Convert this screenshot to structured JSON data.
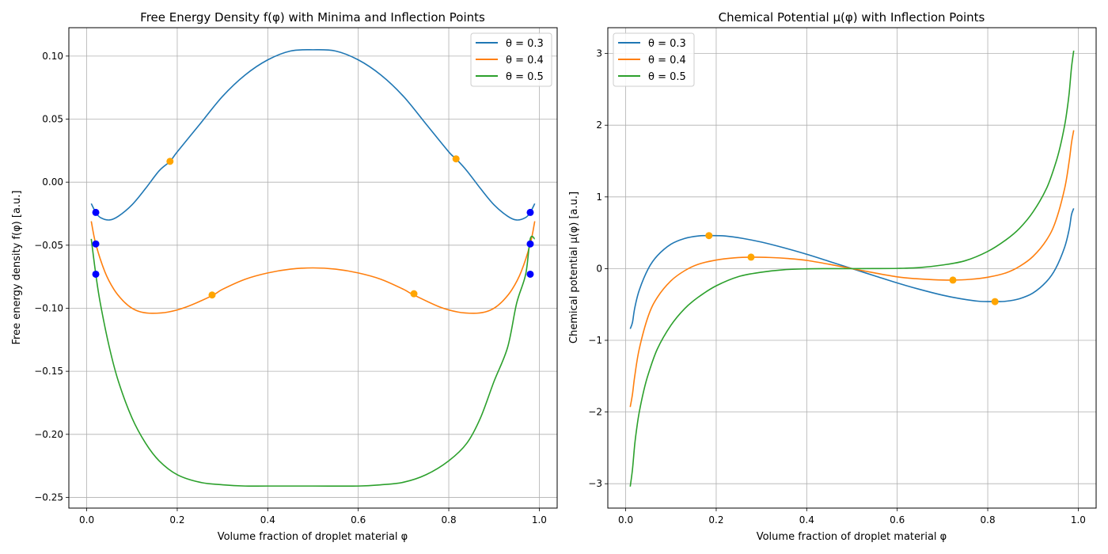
{
  "chart_data": [
    {
      "type": "line",
      "title": "Free Energy Density f(φ) with Minima and Inflection Points",
      "xlabel": "Volume fraction of droplet material φ",
      "ylabel": "Free energy density f(φ) [a.u.]",
      "xlim": [
        -0.0395,
        1.0395
      ],
      "ylim": [
        -0.2585,
        0.1225
      ],
      "xticks": [
        0.0,
        0.2,
        0.4,
        0.6,
        0.8,
        1.0
      ],
      "xtick_labels": [
        "0.0",
        "0.2",
        "0.4",
        "0.6",
        "0.8",
        "1.0"
      ],
      "yticks": [
        -0.25,
        -0.2,
        -0.15,
        -0.1,
        -0.05,
        0.0,
        0.05,
        0.1
      ],
      "ytick_labels": [
        "−0.25",
        "−0.20",
        "−0.15",
        "−0.10",
        "−0.05",
        "0.00",
        "0.05",
        "0.10"
      ],
      "grid": true,
      "legend_position": "upper right",
      "series": [
        {
          "name": "θ = 0.3",
          "color": "#1f77b4",
          "x": [
            0.01,
            0.02,
            0.03,
            0.05,
            0.07,
            0.1,
            0.13,
            0.16,
            0.184,
            0.2,
            0.25,
            0.3,
            0.35,
            0.4,
            0.45,
            0.5,
            0.55,
            0.6,
            0.65,
            0.7,
            0.75,
            0.8,
            0.816,
            0.84,
            0.87,
            0.9,
            0.93,
            0.95,
            0.97,
            0.98,
            0.99
          ],
          "y": [
            -0.017,
            -0.024,
            -0.028,
            -0.03,
            -0.027,
            -0.018,
            -0.005,
            0.009,
            0.0165,
            0.024,
            0.046,
            0.068,
            0.085,
            0.097,
            0.104,
            0.105,
            0.104,
            0.097,
            0.085,
            0.068,
            0.046,
            0.024,
            0.0185,
            0.009,
            -0.005,
            -0.018,
            -0.027,
            -0.03,
            -0.028,
            -0.024,
            -0.017
          ]
        },
        {
          "name": "θ = 0.4",
          "color": "#ff7f0e",
          "x": [
            0.01,
            0.02,
            0.04,
            0.06,
            0.08,
            0.1,
            0.12,
            0.145,
            0.18,
            0.22,
            0.277,
            0.3,
            0.35,
            0.4,
            0.45,
            0.5,
            0.55,
            0.6,
            0.65,
            0.7,
            0.72,
            0.78,
            0.82,
            0.855,
            0.88,
            0.9,
            0.92,
            0.94,
            0.96,
            0.98,
            0.99
          ],
          "y": [
            -0.031,
            -0.049,
            -0.071,
            -0.085,
            -0.094,
            -0.1,
            -0.103,
            -0.104,
            -0.103,
            -0.099,
            -0.09,
            -0.085,
            -0.077,
            -0.072,
            -0.069,
            -0.068,
            -0.069,
            -0.072,
            -0.077,
            -0.085,
            -0.089,
            -0.099,
            -0.103,
            -0.104,
            -0.103,
            -0.1,
            -0.094,
            -0.085,
            -0.071,
            -0.049,
            -0.031
          ]
        },
        {
          "name": "θ = 0.5",
          "color": "#2ca02c",
          "x": [
            0.01,
            0.02,
            0.03,
            0.05,
            0.07,
            0.1,
            0.13,
            0.16,
            0.2,
            0.25,
            0.3,
            0.35,
            0.4,
            0.5,
            0.6,
            0.65,
            0.7,
            0.75,
            0.8,
            0.84,
            0.87,
            0.9,
            0.93,
            0.95,
            0.97,
            0.98,
            0.99
          ],
          "y": [
            -0.045,
            -0.073,
            -0.096,
            -0.131,
            -0.158,
            -0.187,
            -0.207,
            -0.221,
            -0.232,
            -0.238,
            -0.24,
            -0.241,
            -0.241,
            -0.241,
            -0.241,
            -0.24,
            -0.238,
            -0.232,
            -0.221,
            -0.207,
            -0.187,
            -0.158,
            -0.131,
            -0.096,
            -0.073,
            -0.045,
            -0.045
          ]
        }
      ],
      "minima_points": {
        "color": "#0000ff",
        "x": [
          0.02,
          0.02,
          0.02,
          0.98,
          0.98,
          0.98
        ],
        "y": [
          -0.024,
          -0.049,
          -0.073,
          -0.024,
          -0.049,
          -0.073
        ]
      },
      "inflection_points": {
        "color": "#ffa500",
        "x": [
          0.184,
          0.816,
          0.277,
          0.723
        ],
        "y": [
          0.0165,
          0.0185,
          -0.0895,
          -0.0885
        ]
      }
    },
    {
      "type": "line",
      "title": "Chemical Potential μ(φ) with Inflection Points",
      "xlabel": "Volume fraction of droplet material φ",
      "ylabel": "Chemical potential μ(φ) [a.u.]",
      "xlim": [
        -0.0395,
        1.0395
      ],
      "ylim": [
        -3.34,
        3.36
      ],
      "xticks": [
        0.0,
        0.2,
        0.4,
        0.6,
        0.8,
        1.0
      ],
      "xtick_labels": [
        "0.0",
        "0.2",
        "0.4",
        "0.6",
        "0.8",
        "1.0"
      ],
      "yticks": [
        -3,
        -2,
        -1,
        0,
        1,
        2,
        3
      ],
      "ytick_labels": [
        "−3",
        "−2",
        "−1",
        "0",
        "1",
        "2",
        "3"
      ],
      "grid": true,
      "legend_position": "upper left",
      "series": [
        {
          "name": "θ = 0.3",
          "color": "#1f77b4",
          "x": [
            0.01,
            0.015,
            0.02,
            0.03,
            0.05,
            0.07,
            0.1,
            0.13,
            0.16,
            0.184,
            0.22,
            0.26,
            0.3,
            0.35,
            0.4,
            0.45,
            0.5,
            0.55,
            0.6,
            0.65,
            0.7,
            0.74,
            0.78,
            0.816,
            0.84,
            0.87,
            0.9,
            0.93,
            0.95,
            0.97,
            0.98,
            0.985,
            0.99
          ],
          "y": [
            -0.84,
            -0.75,
            -0.55,
            -0.3,
            0.0,
            0.18,
            0.34,
            0.42,
            0.455,
            0.46,
            0.455,
            0.42,
            0.37,
            0.29,
            0.2,
            0.1,
            0.0,
            -0.1,
            -0.2,
            -0.29,
            -0.37,
            -0.42,
            -0.455,
            -0.46,
            -0.455,
            -0.42,
            -0.34,
            -0.18,
            0.0,
            0.3,
            0.55,
            0.75,
            0.84
          ]
        },
        {
          "name": "θ = 0.4",
          "color": "#ff7f0e",
          "x": [
            0.01,
            0.015,
            0.02,
            0.03,
            0.05,
            0.07,
            0.1,
            0.13,
            0.16,
            0.2,
            0.24,
            0.277,
            0.32,
            0.36,
            0.4,
            0.45,
            0.5,
            0.55,
            0.6,
            0.64,
            0.68,
            0.723,
            0.76,
            0.8,
            0.84,
            0.87,
            0.9,
            0.93,
            0.95,
            0.97,
            0.98,
            0.985,
            0.99
          ],
          "y": [
            -1.93,
            -1.75,
            -1.5,
            -1.12,
            -0.66,
            -0.4,
            -0.17,
            -0.03,
            0.06,
            0.12,
            0.15,
            0.16,
            0.155,
            0.14,
            0.115,
            0.06,
            0.0,
            -0.06,
            -0.115,
            -0.14,
            -0.155,
            -0.16,
            -0.15,
            -0.12,
            -0.06,
            0.03,
            0.17,
            0.4,
            0.66,
            1.12,
            1.5,
            1.75,
            1.93
          ]
        },
        {
          "name": "θ = 0.5",
          "color": "#2ca02c",
          "x": [
            0.01,
            0.015,
            0.02,
            0.025,
            0.03,
            0.04,
            0.05,
            0.07,
            0.1,
            0.13,
            0.16,
            0.2,
            0.25,
            0.3,
            0.35,
            0.4,
            0.45,
            0.5,
            0.55,
            0.6,
            0.65,
            0.7,
            0.75,
            0.8,
            0.84,
            0.87,
            0.9,
            0.93,
            0.95,
            0.96,
            0.97,
            0.975,
            0.98,
            0.985,
            0.99
          ],
          "y": [
            -3.04,
            -2.8,
            -2.45,
            -2.2,
            -2.0,
            -1.7,
            -1.47,
            -1.12,
            -0.79,
            -0.56,
            -0.4,
            -0.24,
            -0.11,
            -0.05,
            -0.015,
            -0.003,
            -0.0005,
            0.0,
            0.0005,
            0.003,
            0.015,
            0.05,
            0.11,
            0.24,
            0.4,
            0.56,
            0.79,
            1.12,
            1.47,
            1.7,
            2.0,
            2.2,
            2.45,
            2.8,
            3.04
          ]
        }
      ],
      "inflection_points": {
        "color": "#ffa500",
        "x": [
          0.184,
          0.277,
          0.723,
          0.816
        ],
        "y": [
          0.46,
          0.16,
          -0.16,
          -0.46
        ]
      }
    }
  ]
}
